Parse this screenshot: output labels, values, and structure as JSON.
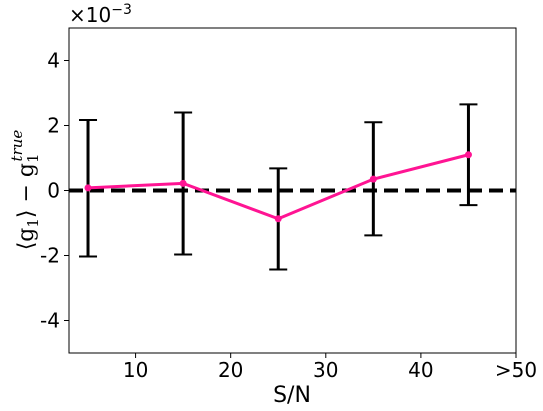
{
  "chart_data": {
    "type": "line",
    "xlabel": "S/N",
    "ylabel": {
      "lhs": "⟨g",
      "lhs_sub": "1",
      "rhs": "⟩ − g",
      "rhs_sub": "1",
      "rhs_sup": "true"
    },
    "y_scale_factor": "×10",
    "y_scale_exponent": "−3",
    "xlim": [
      3,
      50
    ],
    "ylim": [
      -5,
      5
    ],
    "x_ticks": [
      {
        "value": 10,
        "label": "10"
      },
      {
        "value": 20,
        "label": "20"
      },
      {
        "value": 30,
        "label": "30"
      },
      {
        "value": 40,
        "label": "40"
      },
      {
        "value": 50,
        "label": ">50"
      }
    ],
    "y_ticks": [
      {
        "value": -4,
        "label": "-4"
      },
      {
        "value": -2,
        "label": "-2"
      },
      {
        "value": 0,
        "label": "0"
      },
      {
        "value": 2,
        "label": "2"
      },
      {
        "value": 4,
        "label": "4"
      }
    ],
    "reference_line": {
      "y": 0,
      "style": "dashed",
      "color": "#000000"
    },
    "series": [
      {
        "color": "#ff1493",
        "errorbar_color": "#000000",
        "x": [
          5,
          15,
          25,
          35,
          45
        ],
        "y": [
          0.08,
          0.22,
          -0.87,
          0.35,
          1.1
        ],
        "yerr_low": [
          -2.03,
          -1.97,
          -2.43,
          -1.38,
          -0.45
        ],
        "yerr_high": [
          2.17,
          2.4,
          0.68,
          2.1,
          2.65
        ]
      }
    ],
    "grid": false,
    "legend": "none"
  }
}
